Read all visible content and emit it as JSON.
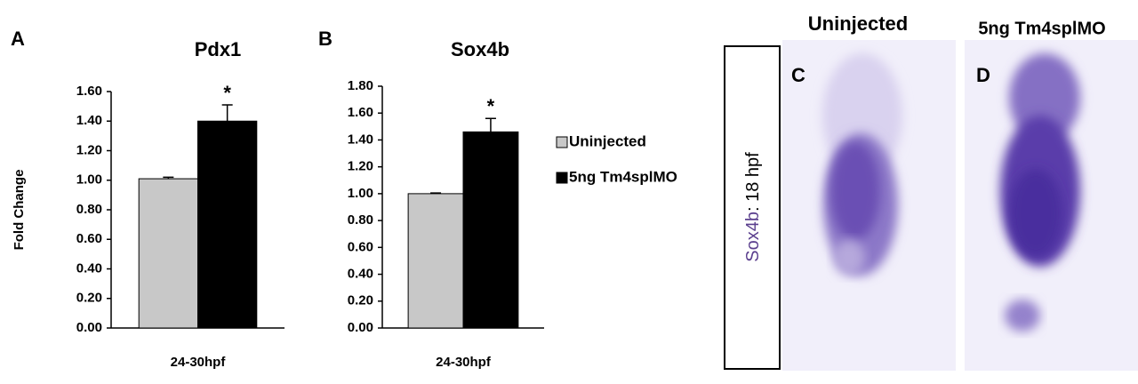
{
  "chart_data": [
    {
      "type": "bar",
      "panel_label": "A",
      "title": "Pdx1",
      "y_label": "Fold Change",
      "categories": [
        "24-30hpf"
      ],
      "series": [
        {
          "name": "Uninjected",
          "color": "#c8c8c8",
          "values": [
            1.01
          ],
          "errors": [
            0.01
          ]
        },
        {
          "name": "5ng Tm4splMO",
          "color": "#000000",
          "values": [
            1.4
          ],
          "errors": [
            0.11
          ]
        }
      ],
      "annotation": "*",
      "ylim": [
        0,
        1.6
      ],
      "yticks": [
        {
          "value": 0,
          "label": "0.00"
        },
        {
          "value": 0.2,
          "label": "0.20"
        },
        {
          "value": 0.4,
          "label": "0.40"
        },
        {
          "value": 0.6,
          "label": "0.60"
        },
        {
          "value": 0.8,
          "label": "0.80"
        },
        {
          "value": 1,
          "label": "1.00"
        },
        {
          "value": 1.2,
          "label": "1.20"
        },
        {
          "value": 1.4,
          "label": "1.40"
        },
        {
          "value": 1.6,
          "label": "1.60"
        }
      ],
      "legend": false
    },
    {
      "type": "bar",
      "panel_label": "B",
      "title": "Sox4b",
      "categories": [
        "24-30hpf"
      ],
      "series": [
        {
          "name": "Uninjected",
          "color": "#c8c8c8",
          "values": [
            1.0
          ],
          "errors": [
            0.005
          ]
        },
        {
          "name": "5ng Tm4splMO",
          "color": "#000000",
          "values": [
            1.46
          ],
          "errors": [
            0.1
          ]
        }
      ],
      "annotation": "*",
      "ylim": [
        0,
        1.8
      ],
      "yticks": [
        {
          "value": 0,
          "label": "0.00"
        },
        {
          "value": 0.2,
          "label": "0.20"
        },
        {
          "value": 0.4,
          "label": "0.40"
        },
        {
          "value": 0.6,
          "label": "0.60"
        },
        {
          "value": 0.8,
          "label": "0.80"
        },
        {
          "value": 1,
          "label": "1.00"
        },
        {
          "value": 1.2,
          "label": "1.20"
        },
        {
          "value": 1.4,
          "label": "1.40"
        },
        {
          "value": 1.6,
          "label": "1.60"
        },
        {
          "value": 1.8,
          "label": "1.80"
        }
      ],
      "legend": "right"
    }
  ],
  "images": {
    "side_label_gene": "Sox4b",
    "side_label_stage": ": 18 hpf",
    "panels": [
      {
        "label": "C",
        "title": "Uninjected"
      },
      {
        "label": "D",
        "title": "5ng Tm4splMO"
      }
    ]
  }
}
